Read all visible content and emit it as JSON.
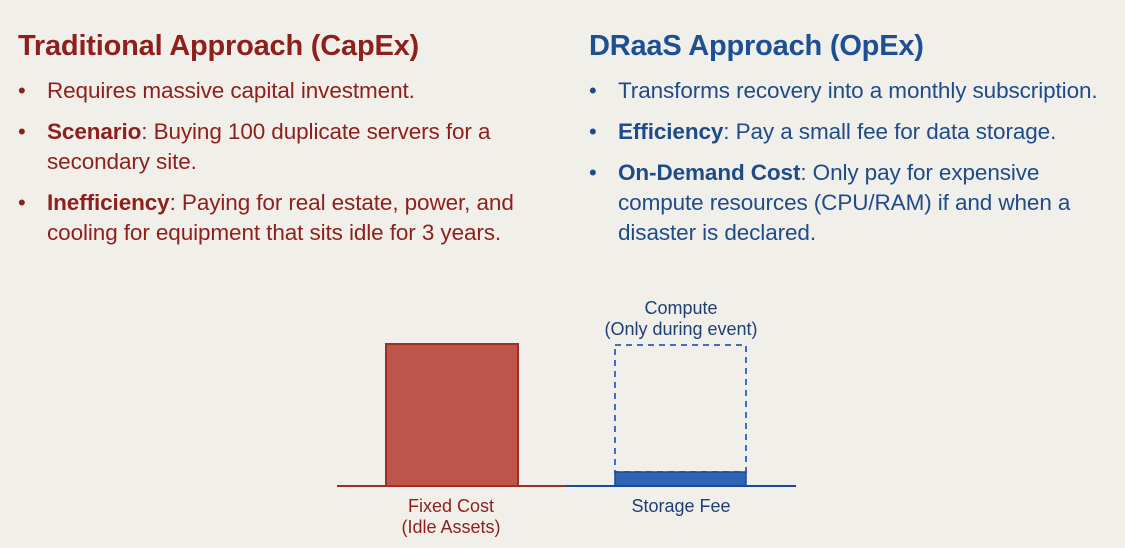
{
  "traditional": {
    "title": "Traditional Approach (CapEx)",
    "color": "#8e1f1b",
    "bullets": [
      {
        "term": "",
        "sep": "",
        "text": "Requires massive capital investment."
      },
      {
        "term": "Scenario",
        "sep": ": ",
        "text": "Buying 100 duplicate servers for a secondary site."
      },
      {
        "term": "Inefficiency",
        "sep": ": ",
        "text": "Paying for real estate, power, and cooling for equipment that sits idle for 3 years."
      }
    ]
  },
  "draas": {
    "title": "DRaaS Approach (OpEx)",
    "color": "#1d4f95",
    "bullets": [
      {
        "term": "",
        "sep": "",
        "text": "Transforms recovery into a monthly subscription."
      },
      {
        "term": "Efficiency",
        "sep": ": ",
        "text": "Pay a small fee for data storage."
      },
      {
        "term": "On-Demand Cost",
        "sep": ": ",
        "text": "Only pay for expensive compute resources (CPU/RAM) if and when a disaster is declared."
      }
    ]
  },
  "bullet_symbol": "•",
  "cost_diagram": {
    "fixed_cost": {
      "label_line1": "Fixed Cost",
      "label_line2": "(Idle Assets)",
      "fill_color": "#bd554b",
      "stroke_color": "#9c2f27"
    },
    "storage_fee": {
      "label": "Storage Fee",
      "fill_color": "#2f63b4",
      "stroke_color": "#1a4a96"
    },
    "compute": {
      "label_line1": "Compute",
      "label_line2": "(Only during event)",
      "stroke_color": "#3f6fbe",
      "style": "dashed outline"
    }
  }
}
